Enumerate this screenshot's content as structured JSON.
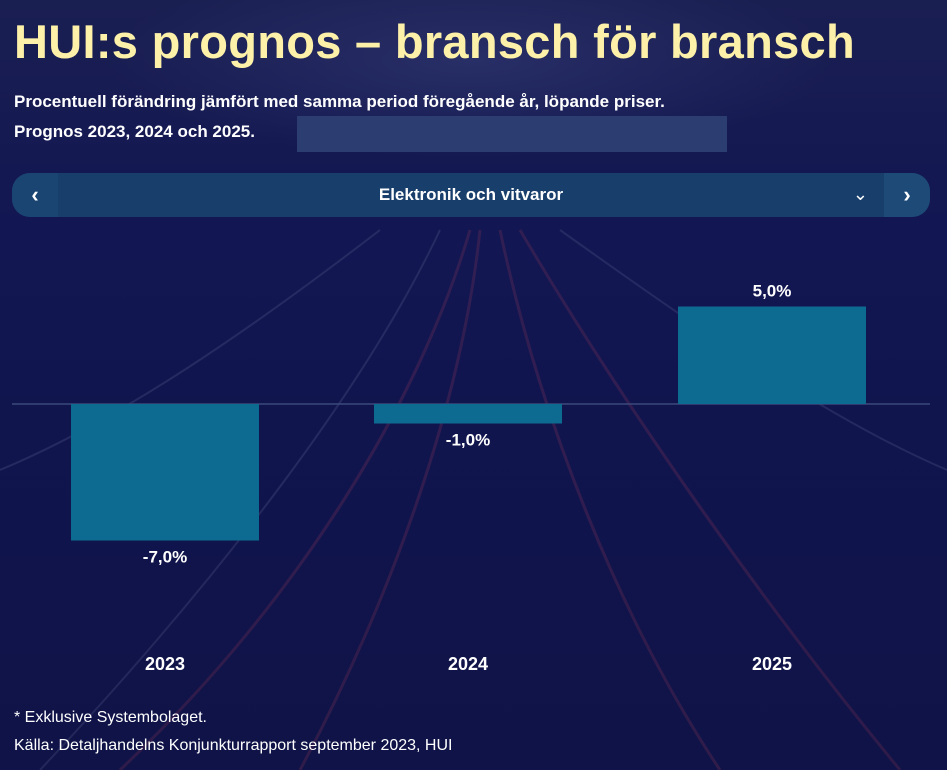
{
  "title": "HUI:s prognos – bransch för bransch",
  "subtitle_line1": "Procentuell förändring jämfört med samma period föregående år, löpande priser.",
  "subtitle_line2": "Prognos 2023, 2024 och 2025.",
  "selector": {
    "prev_icon": "chevron-left-icon",
    "prev_glyph": "‹",
    "selected": "Elektronik och vitvaror",
    "dropdown_icon": "chevron-down-icon",
    "dropdown_glyph": "⌄",
    "next_icon": "chevron-right-icon",
    "next_glyph": "›"
  },
  "chart_data": {
    "type": "bar",
    "categories": [
      "2023",
      "2024",
      "2025"
    ],
    "values": [
      -7.0,
      -1.0,
      5.0
    ],
    "data_labels": [
      "-7,0%",
      "-1,0%",
      "5,0%"
    ],
    "bar_color": "#0d6b91",
    "baseline_color": "#3b4a7a",
    "label_color": "#ffffff",
    "grid": false,
    "legend": "none"
  },
  "footnotes": [
    "* Exklusive Systembolaget.",
    "Källa: Detaljhandelns Konjunkturrapport september 2023, HUI"
  ],
  "colors": {
    "title": "#fdf1a9",
    "background": "#101546",
    "selector": "#183e6b"
  }
}
